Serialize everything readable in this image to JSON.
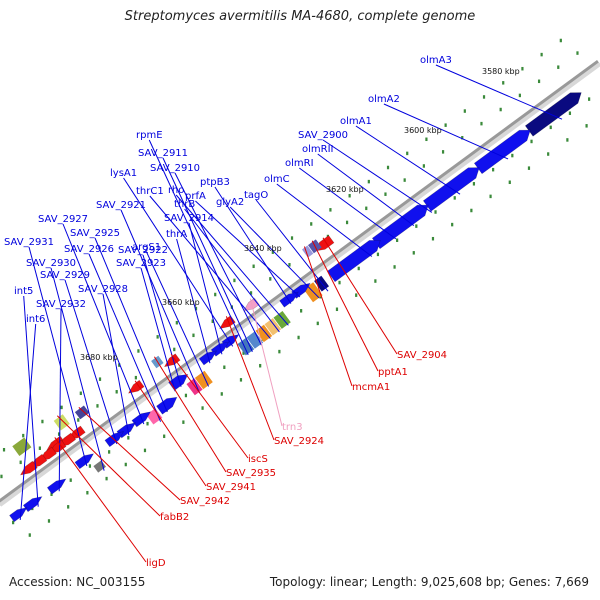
{
  "title": "Streptomyces avermitilis MA-4680, complete genome",
  "footer": {
    "accession": "Accession: NC_003155",
    "stats": "Topology: linear; Length: 9,025,608 bp; Genes: 7,669"
  },
  "ruler": [
    {
      "label": "3580 kbp"
    },
    {
      "label": "3600 kbp"
    },
    {
      "label": "3620 kbp"
    },
    {
      "label": "3640 kbp"
    },
    {
      "label": "3660 kbp"
    },
    {
      "label": "3680 kbp"
    }
  ],
  "colors": {
    "forward_label": "#0000dd",
    "reverse_label": "#dd0000",
    "rna_label": "#f0a0c0",
    "blue": "#1010ee",
    "dark_blue": "#0a0a80",
    "red": "#ee1111",
    "orange": "#f09020",
    "green": "#6aa83a"
  },
  "forward_genes": [
    "olmA3",
    "olmA2",
    "olmA1",
    "SAV_2900",
    "olmRII",
    "olmRI",
    "olmC",
    "tagO",
    "glyA2",
    "prfA",
    "ptpB3",
    "rho",
    "thrB",
    "thrC1",
    "SAV_2910",
    "SAV_2911",
    "rpmE",
    "lysA1",
    "SAV_2914",
    "thrA",
    "argS1",
    "SAV_2921",
    "SAV_2922",
    "SAV_2923",
    "SAV_2925",
    "SAV_2926",
    "SAV_2927",
    "SAV_2928",
    "SAV_2929",
    "SAV_2930",
    "SAV_2931",
    "SAV_2932",
    "int5",
    "int6"
  ],
  "reverse_genes": [
    "SAV_2904",
    "pptA1",
    "mcmA1",
    "trn3",
    "SAV_2924",
    "iscS",
    "SAV_2935",
    "SAV_2941",
    "SAV_2942",
    "fabB2",
    "ligD"
  ]
}
